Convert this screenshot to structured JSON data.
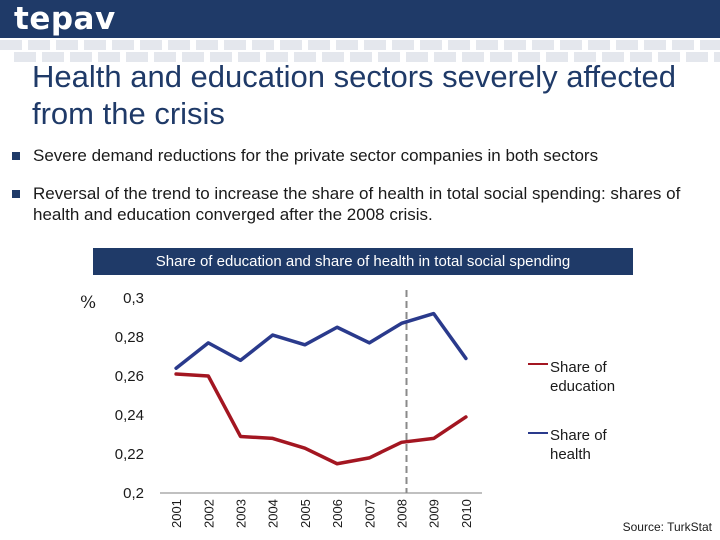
{
  "brand": "tepav",
  "slide": {
    "title": "Health and education sectors severely affected from the crisis",
    "bullets": [
      "Severe demand reductions for the private sector companies in both sectors",
      "Reversal of the trend to increase the share of health in total social spending: shares of health and education converged after the 2008 crisis."
    ]
  },
  "chart_data": {
    "type": "line",
    "title": "Share of education and share of health in total social spending",
    "ylabel": "%",
    "xlabel": "",
    "categories": [
      "2001",
      "2002",
      "2003",
      "2004",
      "2005",
      "2006",
      "2007",
      "2008",
      "2009",
      "2010"
    ],
    "ylim": [
      0.2,
      0.3
    ],
    "yticks": [
      "0,3",
      "0,28",
      "0,26",
      "0,24",
      "0,22",
      "0,2"
    ],
    "ytick_values": [
      0.3,
      0.28,
      0.26,
      0.24,
      0.22,
      0.2
    ],
    "series": [
      {
        "name": "Share of education",
        "color": "#a31621",
        "values": [
          0.261,
          0.26,
          0.229,
          0.228,
          0.223,
          0.215,
          0.218,
          0.226,
          0.228,
          0.239
        ]
      },
      {
        "name": "Share of health",
        "color": "#2a3a8c",
        "values": [
          0.264,
          0.277,
          0.268,
          0.281,
          0.276,
          0.285,
          0.277,
          0.287,
          0.292,
          0.269
        ]
      }
    ],
    "annotation": {
      "type": "vertical-dashed-line",
      "at_category": "2008"
    },
    "grid": false,
    "legend_position": "right"
  },
  "source": "Source: TurkStat"
}
